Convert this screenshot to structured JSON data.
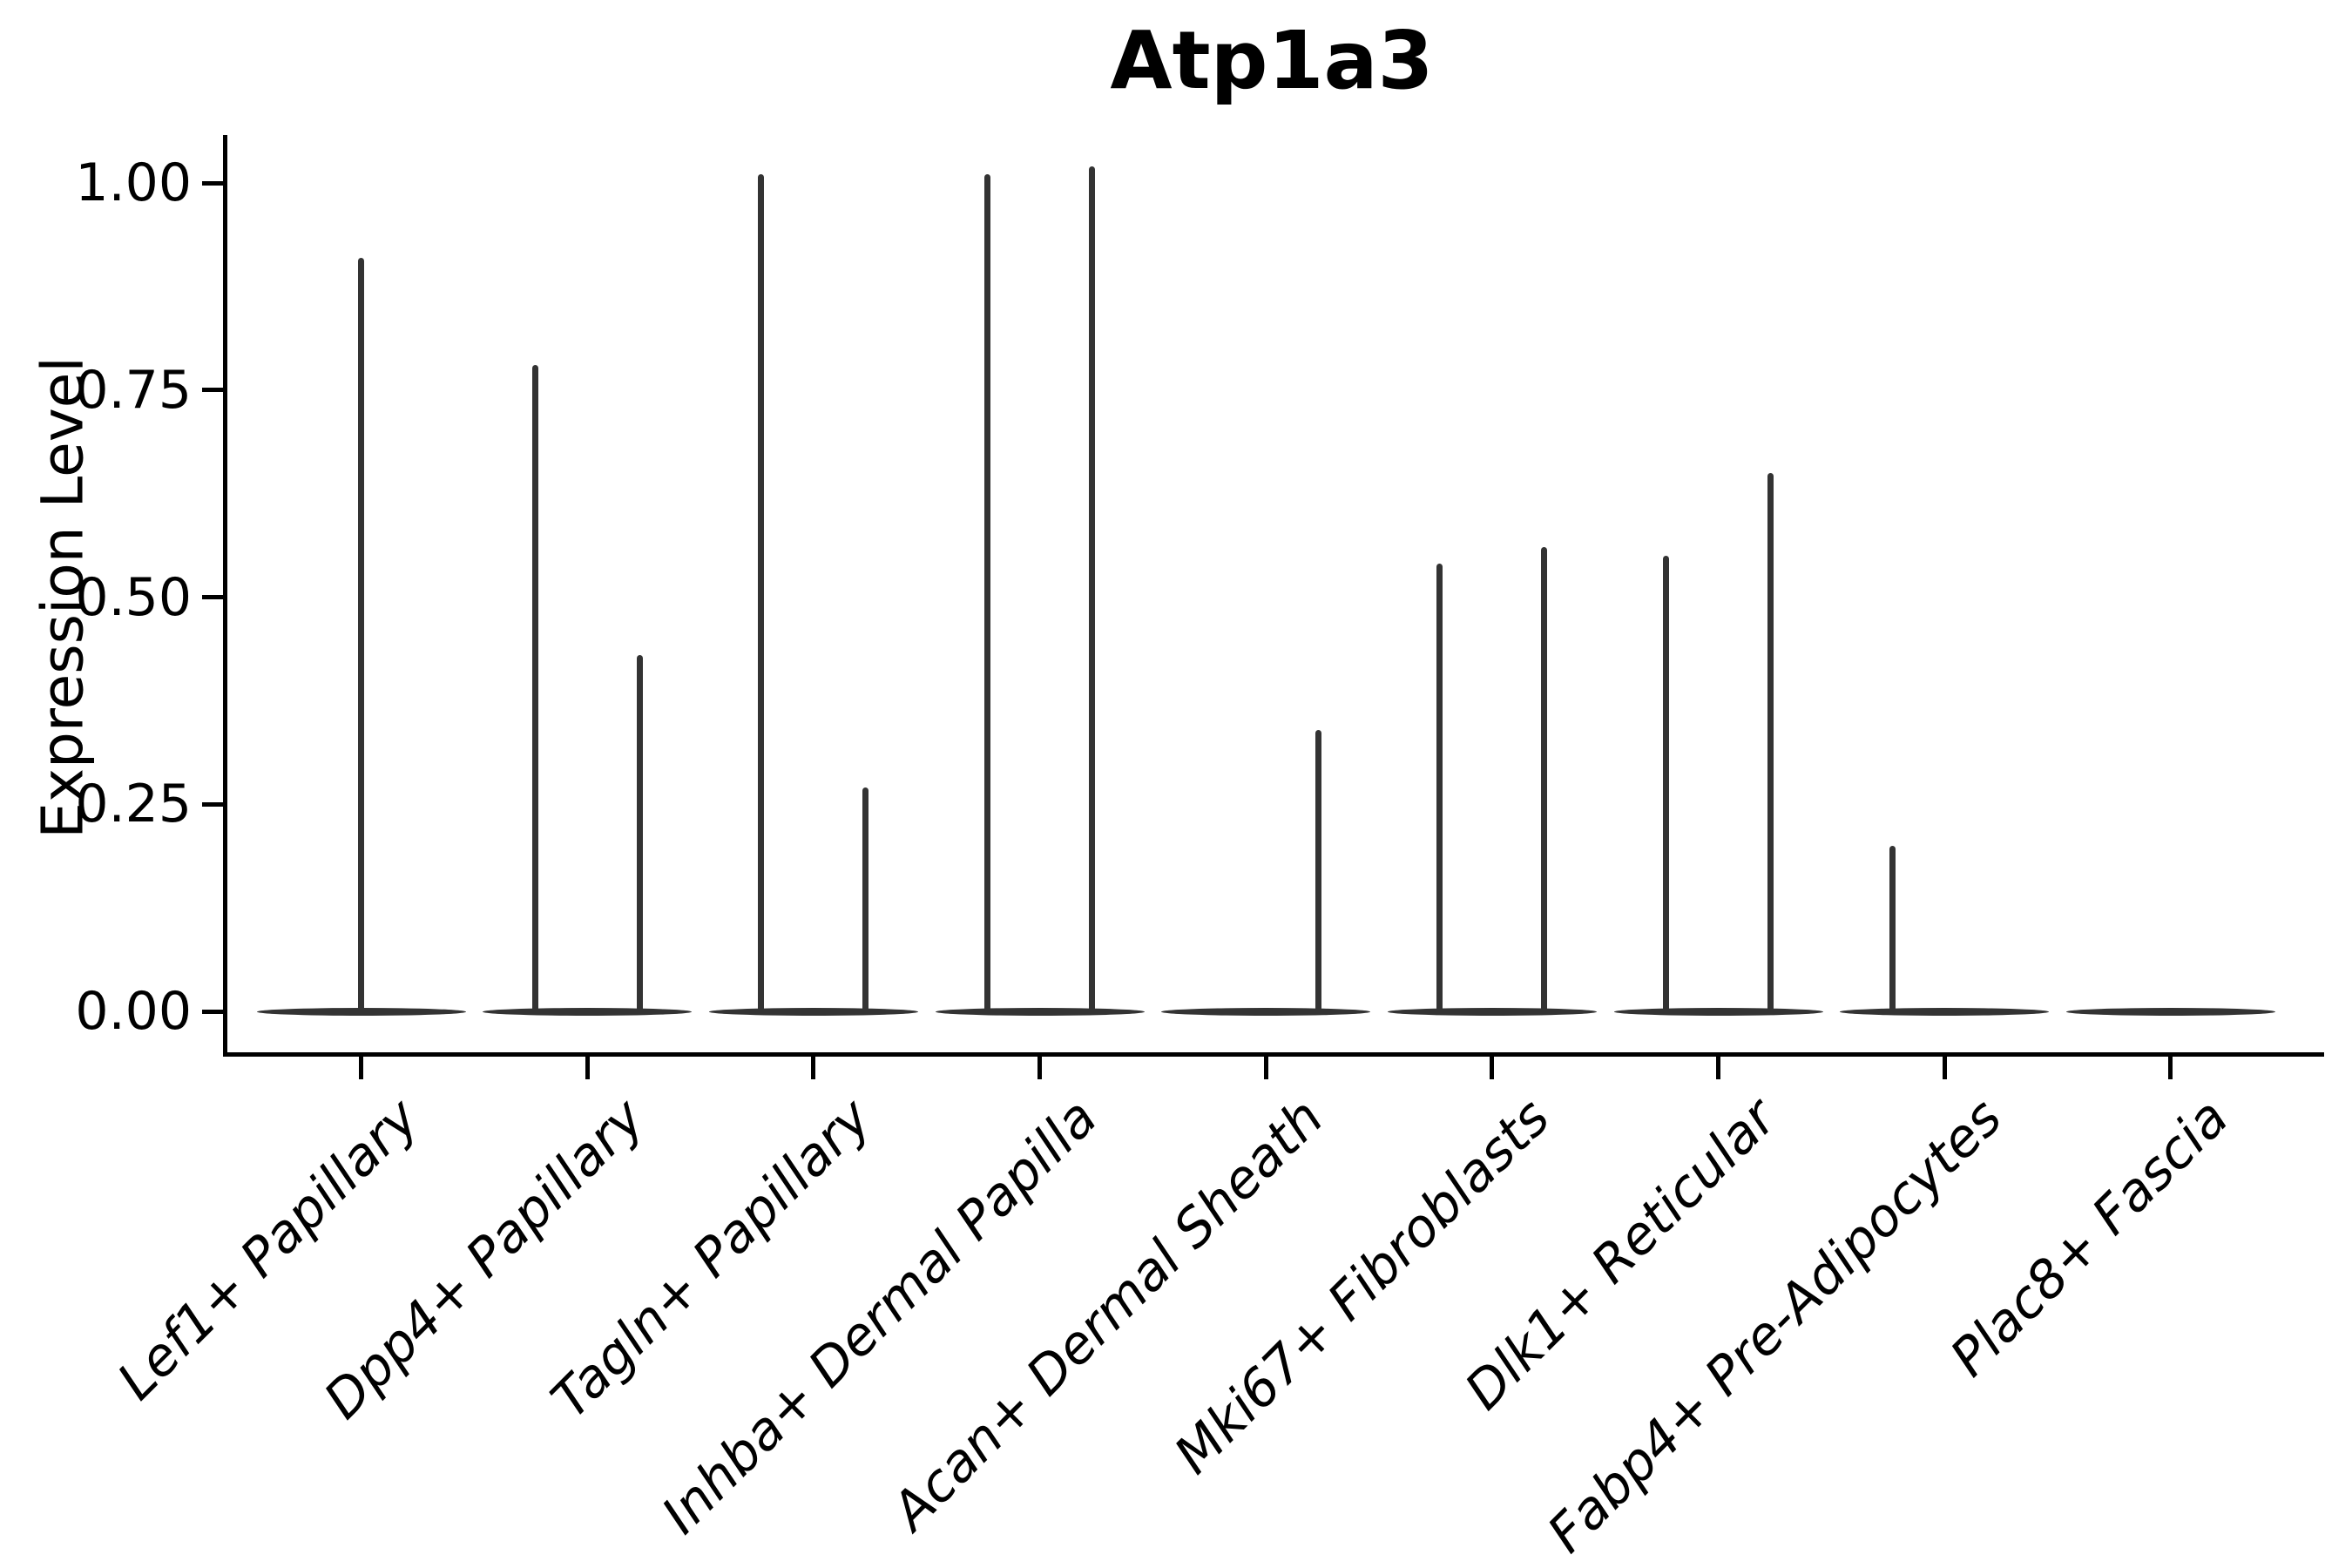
{
  "chart_data": {
    "type": "violin",
    "title": "Atp1a3",
    "xlabel": "",
    "ylabel": "Expression Level",
    "ylim": [
      0,
      1.06
    ],
    "yticks": [
      0,
      0.25,
      0.5,
      0.75,
      1.0
    ],
    "ytick_labels": [
      "0.00",
      "0.25",
      "0.50",
      "0.75",
      "1.00"
    ],
    "grid": "off",
    "legend": "none",
    "categories": [
      "Lef1+ Papillary",
      "Dpp4+ Papillary",
      "Tagln+ Papillary",
      "Inhba+ Dermal Papilla",
      "Acan+ Dermal Sheath",
      "Mki67+ Fibroblasts",
      "Dlk1+ Reticular",
      "Fabp4+ Pre-Adipocytes",
      "Plac8+ Fascia"
    ],
    "series": [
      {
        "category": "Lef1+ Papillary",
        "spikes": [
          {
            "position": "center",
            "max": 0.91
          }
        ]
      },
      {
        "category": "Dpp4+ Papillary",
        "spikes": [
          {
            "position": "left",
            "max": 0.78
          },
          {
            "position": "right",
            "max": 0.43
          }
        ]
      },
      {
        "category": "Tagln+ Papillary",
        "spikes": [
          {
            "position": "left",
            "max": 1.01
          },
          {
            "position": "right",
            "max": 0.27
          }
        ]
      },
      {
        "category": "Inhba+ Dermal Papilla",
        "spikes": [
          {
            "position": "left",
            "max": 1.01
          },
          {
            "position": "right",
            "max": 1.02
          }
        ]
      },
      {
        "category": "Acan+ Dermal Sheath",
        "spikes": [
          {
            "position": "right",
            "max": 0.34
          }
        ]
      },
      {
        "category": "Mki67+ Fibroblasts",
        "spikes": [
          {
            "position": "left",
            "max": 0.54
          },
          {
            "position": "right",
            "max": 0.56
          }
        ]
      },
      {
        "category": "Dlk1+ Reticular",
        "spikes": [
          {
            "position": "left",
            "max": 0.55
          },
          {
            "position": "right",
            "max": 0.65
          }
        ]
      },
      {
        "category": "Fabp4+ Pre-Adipocytes",
        "spikes": [
          {
            "position": "left",
            "max": 0.2
          }
        ]
      },
      {
        "category": "Plac8+ Fascia",
        "spikes": []
      }
    ],
    "colors": {
      "violin": "#333333",
      "axis": "#000000",
      "text": "#000000",
      "background": "#ffffff"
    }
  }
}
